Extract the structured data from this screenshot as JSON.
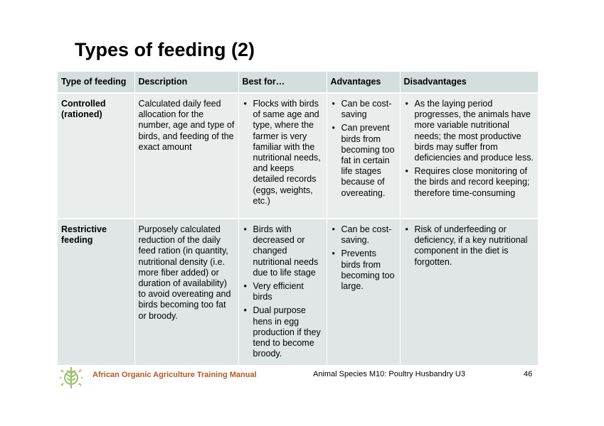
{
  "title": "Types of feeding (2)",
  "table": {
    "headers": [
      "Type of feeding",
      "Description",
      "Best for…",
      "Advantages",
      "Disadvantages"
    ],
    "rows": [
      {
        "type": "Controlled (rationed)",
        "description": "Calculated daily feed allocation for the number, age and type of birds, and feeding of the exact amount",
        "best_for": [
          "Flocks with birds of same age and type, where the farmer is very familiar with the nutritional needs, and keeps detailed records (eggs, weights, etc.)"
        ],
        "advantages": [
          "Can be cost-saving",
          "Can prevent birds from becoming too fat in certain life stages because of overeating."
        ],
        "disadvantages": [
          "As the laying period progresses, the animals have more variable nutritional needs; the most productive birds may suffer from deficiencies and produce less.",
          "Requires close monitoring of the birds and record keeping; therefore time-consuming"
        ]
      },
      {
        "type": "Restrictive feeding",
        "description": "Purposely calculated reduction of the daily feed ration (in quantity, nutritional density (i.e. more fiber added) or duration of availability) to avoid overeating and birds becoming too fat or broody.",
        "best_for": [
          "Birds with decreased or changed nutritional needs due to life stage",
          "Very efficient birds",
          "Dual purpose hens in egg production if they tend to become broody."
        ],
        "advantages": [
          "Can be cost-saving.",
          "Prevents birds from becoming too large."
        ],
        "disadvantages": [
          "Risk of underfeeding or deficiency, if a key nutritional component in the diet is forgotten."
        ]
      }
    ]
  },
  "footer": {
    "manual": "African Organic Agriculture Training Manual",
    "module": "Animal Species M10: Poultry Husbandry U3",
    "page": "46",
    "logo_icon": "leaf-sun-logo-icon",
    "accent_color": "#b5561f",
    "logo_color": "#9ebf6a"
  },
  "colors": {
    "header_bg": "#d4dedd",
    "row1_bg": "#e9eeed",
    "row2_bg": "#dfe6e5"
  }
}
